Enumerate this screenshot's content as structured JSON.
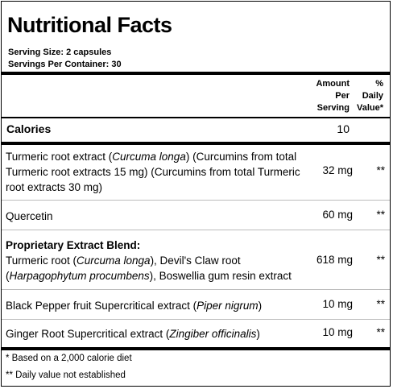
{
  "title": "Nutritional Facts",
  "serving_size": "Serving Size:  2 capsules",
  "servings_per_container": "Servings Per Container:  30",
  "columns": {
    "amount_line1": "Amount",
    "amount_line2": "Per",
    "amount_line3": "Serving",
    "dv_line1": "%",
    "dv_line2": "Daily",
    "dv_line3": "Value*"
  },
  "calories": {
    "label": "Calories",
    "value": "10"
  },
  "rows": [
    {
      "text_a": "Turmeric root extract (",
      "italic_a": "Curcuma longa",
      "text_b": ") (Curcumins from total Turmeric root extracts 15 mg) (Curcumins from total Turmeric root extracts 30 mg)",
      "amount": "32 mg",
      "dv": "**"
    },
    {
      "text_a": "Quercetin",
      "amount": "60 mg",
      "dv": "**"
    },
    {
      "title": "Proprietary Extract Blend:",
      "text_a": "Turmeric root (",
      "italic_a": "Curcuma longa",
      "text_b": "), Devil's Claw root (",
      "italic_b": "Harpagophytum procumbens",
      "text_c": "), Boswellia gum resin extract",
      "amount": "618 mg",
      "dv": "**"
    },
    {
      "text_a": "Black Pepper fruit Supercritical extract (",
      "italic_a": "Piper nigrum",
      "text_b": ")",
      "amount": "10 mg",
      "dv": "**"
    },
    {
      "text_a": "Ginger Root Supercritical extract (",
      "italic_a": "Zingiber officinalis",
      "text_b": ")",
      "amount": "10 mg",
      "dv": "**"
    }
  ],
  "footnotes": [
    "* Based on a 2,000 calorie diet",
    "** Daily value not established"
  ]
}
